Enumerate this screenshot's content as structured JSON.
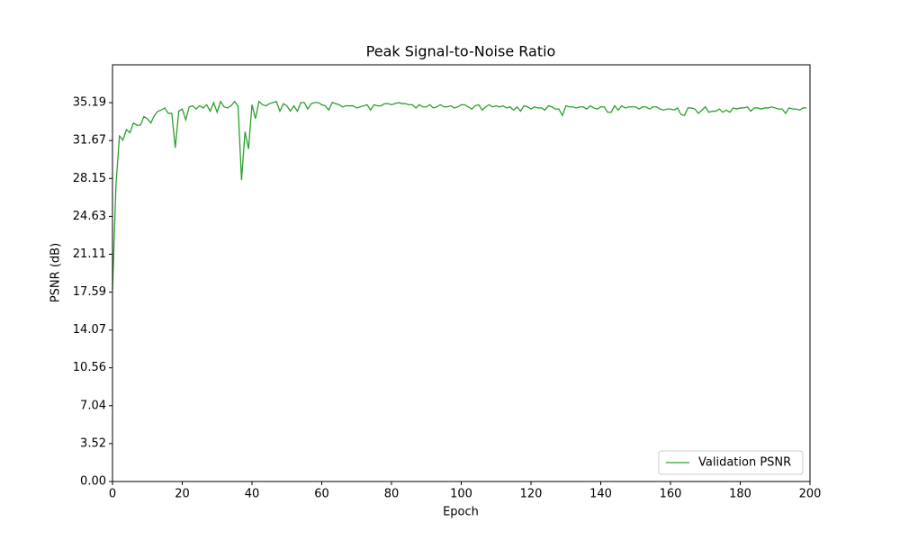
{
  "chart_data": {
    "type": "line",
    "title": "Peak Signal-to-Noise Ratio",
    "xlabel": "Epoch",
    "ylabel": "PSNR (dB)",
    "x": [
      0,
      1,
      2,
      3,
      4,
      5,
      6,
      7,
      8,
      9,
      10,
      11,
      12,
      13,
      14,
      15,
      16,
      17,
      18,
      19,
      20,
      21,
      22,
      23,
      24,
      25,
      26,
      27,
      28,
      29,
      30,
      31,
      32,
      33,
      34,
      35,
      36,
      37,
      38,
      39,
      40,
      41,
      42,
      43,
      44,
      45,
      46,
      47,
      48,
      49,
      50,
      51,
      52,
      53,
      54,
      55,
      56,
      57,
      58,
      59,
      60,
      61,
      62,
      63,
      64,
      65,
      66,
      67,
      68,
      69,
      70,
      71,
      72,
      73,
      74,
      75,
      76,
      77,
      78,
      79,
      80,
      81,
      82,
      83,
      84,
      85,
      86,
      87,
      88,
      89,
      90,
      91,
      92,
      93,
      94,
      95,
      96,
      97,
      98,
      99,
      100,
      101,
      102,
      103,
      104,
      105,
      106,
      107,
      108,
      109,
      110,
      111,
      112,
      113,
      114,
      115,
      116,
      117,
      118,
      119,
      120,
      121,
      122,
      123,
      124,
      125,
      126,
      127,
      128,
      129,
      130,
      131,
      132,
      133,
      134,
      135,
      136,
      137,
      138,
      139,
      140,
      141,
      142,
      143,
      144,
      145,
      146,
      147,
      148,
      149,
      150,
      151,
      152,
      153,
      154,
      155,
      156,
      157,
      158,
      159,
      160,
      161,
      162,
      163,
      164,
      165,
      166,
      167,
      168,
      169,
      170,
      171,
      172,
      173,
      174,
      175,
      176,
      177,
      178,
      179,
      180,
      181,
      182,
      183,
      184,
      185,
      186,
      187,
      188,
      189,
      190,
      191,
      192,
      193,
      194,
      195,
      196,
      197,
      198,
      199
    ],
    "series": [
      {
        "name": "Validation PSNR",
        "color": "#2ca02c",
        "values": [
          17.8,
          27.6,
          32.1,
          31.7,
          32.7,
          32.4,
          33.3,
          33.1,
          33.1,
          33.9,
          33.7,
          33.3,
          34.0,
          34.4,
          34.5,
          34.7,
          34.2,
          34.2,
          31.0,
          34.4,
          34.6,
          33.6,
          34.8,
          34.9,
          34.6,
          34.9,
          34.7,
          35.0,
          34.4,
          35.2,
          34.3,
          35.3,
          34.8,
          34.7,
          34.9,
          35.3,
          34.9,
          28.0,
          32.5,
          30.9,
          35.0,
          33.7,
          35.3,
          35.0,
          34.9,
          35.1,
          35.2,
          35.3,
          34.4,
          35.1,
          34.9,
          34.4,
          34.9,
          34.4,
          35.2,
          35.2,
          34.6,
          35.1,
          35.2,
          35.2,
          35.0,
          34.9,
          34.5,
          35.2,
          35.1,
          35.0,
          34.8,
          34.9,
          34.9,
          34.9,
          34.7,
          34.8,
          34.9,
          35.0,
          34.5,
          35.0,
          34.9,
          34.9,
          35.1,
          35.1,
          35.0,
          35.1,
          35.2,
          35.1,
          35.1,
          35.0,
          35.0,
          34.7,
          35.0,
          34.8,
          34.8,
          35.0,
          34.7,
          34.8,
          35.0,
          34.8,
          34.8,
          34.9,
          34.7,
          34.8,
          35.0,
          35.0,
          34.8,
          34.6,
          34.9,
          35.0,
          34.5,
          34.8,
          35.0,
          34.8,
          34.9,
          34.8,
          34.9,
          34.7,
          34.8,
          34.5,
          34.8,
          34.4,
          34.9,
          34.8,
          34.6,
          34.8,
          34.7,
          34.7,
          34.5,
          34.9,
          34.8,
          34.6,
          34.6,
          34.0,
          34.9,
          34.8,
          34.8,
          34.7,
          34.8,
          34.8,
          34.6,
          34.9,
          34.7,
          34.6,
          34.8,
          34.8,
          34.3,
          34.3,
          34.9,
          34.5,
          34.9,
          34.7,
          34.8,
          34.8,
          34.8,
          34.6,
          34.8,
          34.8,
          34.6,
          34.8,
          34.8,
          34.6,
          34.5,
          34.6,
          34.6,
          34.5,
          34.7,
          34.1,
          34.0,
          34.7,
          34.7,
          34.6,
          34.2,
          34.5,
          34.8,
          34.3,
          34.4,
          34.4,
          34.6,
          34.3,
          34.5,
          34.3,
          34.7,
          34.6,
          34.7,
          34.7,
          34.8,
          34.4,
          34.7,
          34.7,
          34.6,
          34.7,
          34.7,
          34.8,
          34.7,
          34.6,
          34.6,
          34.2,
          34.7,
          34.6,
          34.6,
          34.5,
          34.7,
          34.7
        ]
      }
    ],
    "xlim": [
      0,
      200
    ],
    "xticks": [
      0,
      20,
      40,
      60,
      80,
      100,
      120,
      140,
      160,
      180,
      200
    ],
    "ylim": [
      0,
      38.709
    ],
    "yticks": [
      {
        "value": 0,
        "label": "0.00"
      },
      3.52,
      7.04,
      10.56,
      14.07,
      17.59,
      21.11,
      24.63,
      28.15,
      31.67,
      35.19
    ],
    "legend": "lower right"
  }
}
